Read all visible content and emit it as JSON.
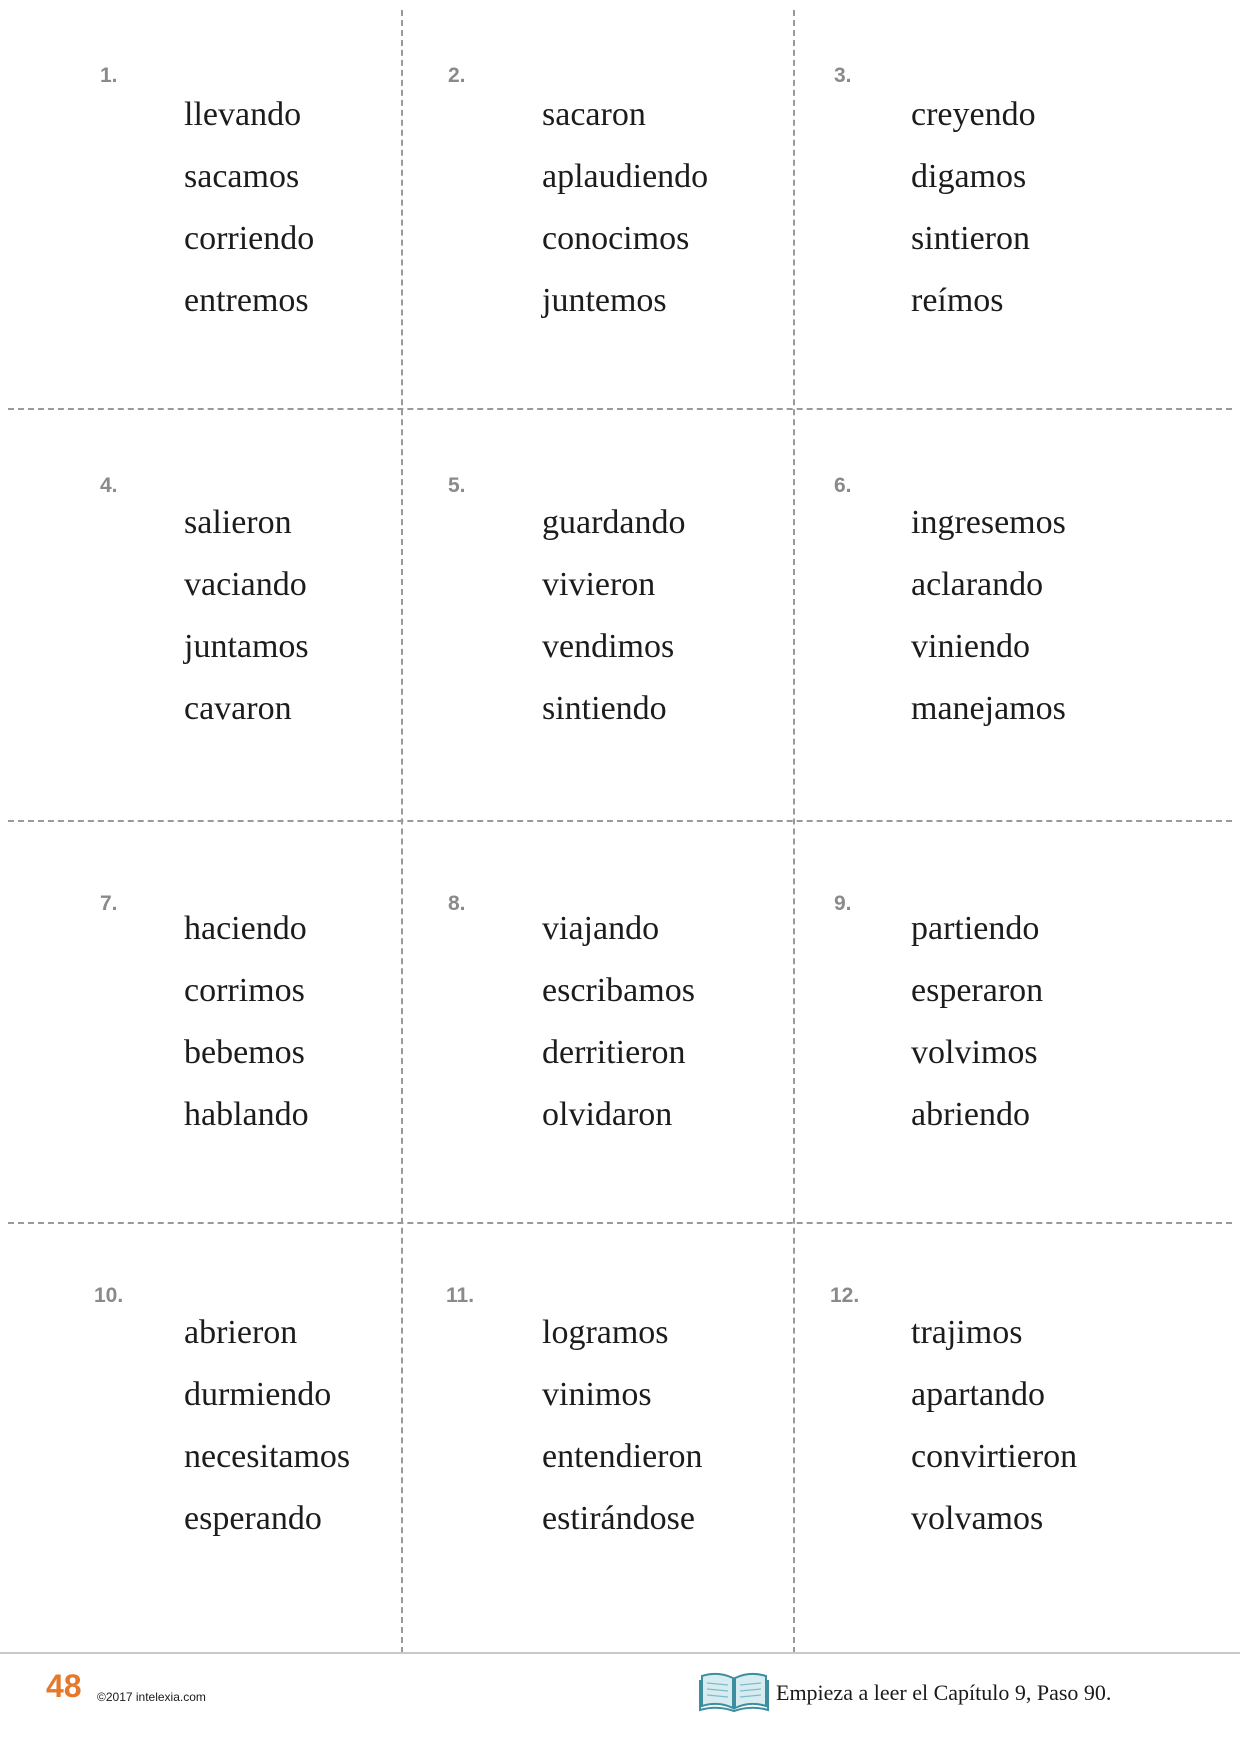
{
  "cards": [
    {
      "number": "1.",
      "words": [
        "llevando",
        "sacamos",
        "corriendo",
        "entremos"
      ]
    },
    {
      "number": "2.",
      "words": [
        "sacaron",
        "aplaudiendo",
        "conocimos",
        "juntemos"
      ]
    },
    {
      "number": "3.",
      "words": [
        "creyendo",
        "digamos",
        "sintieron",
        "reímos"
      ]
    },
    {
      "number": "4.",
      "words": [
        "salieron",
        "vaciando",
        "juntamos",
        "cavaron"
      ]
    },
    {
      "number": "5.",
      "words": [
        "guardando",
        "vivieron",
        "vendimos",
        "sintiendo"
      ]
    },
    {
      "number": "6.",
      "words": [
        "ingresemos",
        "aclarando",
        "viniendo",
        "manejamos"
      ]
    },
    {
      "number": "7.",
      "words": [
        "haciendo",
        "corrimos",
        "bebemos",
        "hablando"
      ]
    },
    {
      "number": "8.",
      "words": [
        "viajando",
        "escribamos",
        "derritieron",
        "olvidaron"
      ]
    },
    {
      "number": "9.",
      "words": [
        "partiendo",
        "esperaron",
        "volvimos",
        "abriendo"
      ]
    },
    {
      "number": "10.",
      "words": [
        "abrieron",
        "durmiendo",
        "necesitamos",
        "esperando"
      ]
    },
    {
      "number": "11.",
      "words": [
        "logramos",
        "vinimos",
        "entendieron",
        "estirándose"
      ]
    },
    {
      "number": "12.",
      "words": [
        "trajimos",
        "apartando",
        "convirtieron",
        "volvamos"
      ]
    }
  ],
  "footer": {
    "page_number": "48",
    "copyright": "©2017 intelexia.com",
    "book_icon": "open-book-icon",
    "note": "Empieza a leer el Capítulo 9, Paso 90."
  },
  "colors": {
    "page_number": "#e5782a",
    "card_number": "#8a8a8a",
    "cut_lines": "#9a9a9a"
  }
}
